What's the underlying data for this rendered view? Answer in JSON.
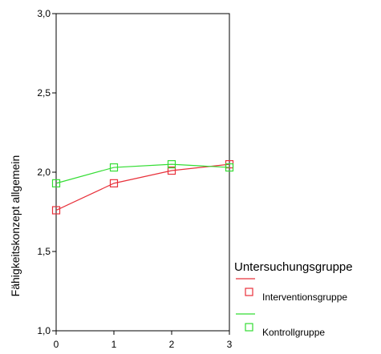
{
  "chart_data": {
    "type": "line",
    "title": "",
    "xlabel": "",
    "ylabel": "Fähigkeitskonzept allgemein",
    "x": [
      0,
      1,
      2,
      3
    ],
    "x_tick_labels": [
      "0",
      "1",
      "2",
      "3"
    ],
    "xlim": [
      0,
      3
    ],
    "ylim": [
      1.0,
      3.0
    ],
    "y_ticks": [
      1.0,
      1.5,
      2.0,
      2.5,
      3.0
    ],
    "y_tick_labels": [
      "1,0",
      "1,5",
      "2,0",
      "2,5",
      "3,0"
    ],
    "grid": false,
    "marker": "open-square",
    "legend": {
      "title": "Untersuchungsgruppe",
      "position": "right"
    },
    "series": [
      {
        "name": "Interventionsgruppe",
        "color": "#e8303a",
        "values": [
          1.76,
          1.93,
          2.01,
          2.05
        ]
      },
      {
        "name": "Kontrollgruppe",
        "color": "#33dd33",
        "values": [
          1.93,
          2.03,
          2.05,
          2.03
        ]
      }
    ]
  }
}
